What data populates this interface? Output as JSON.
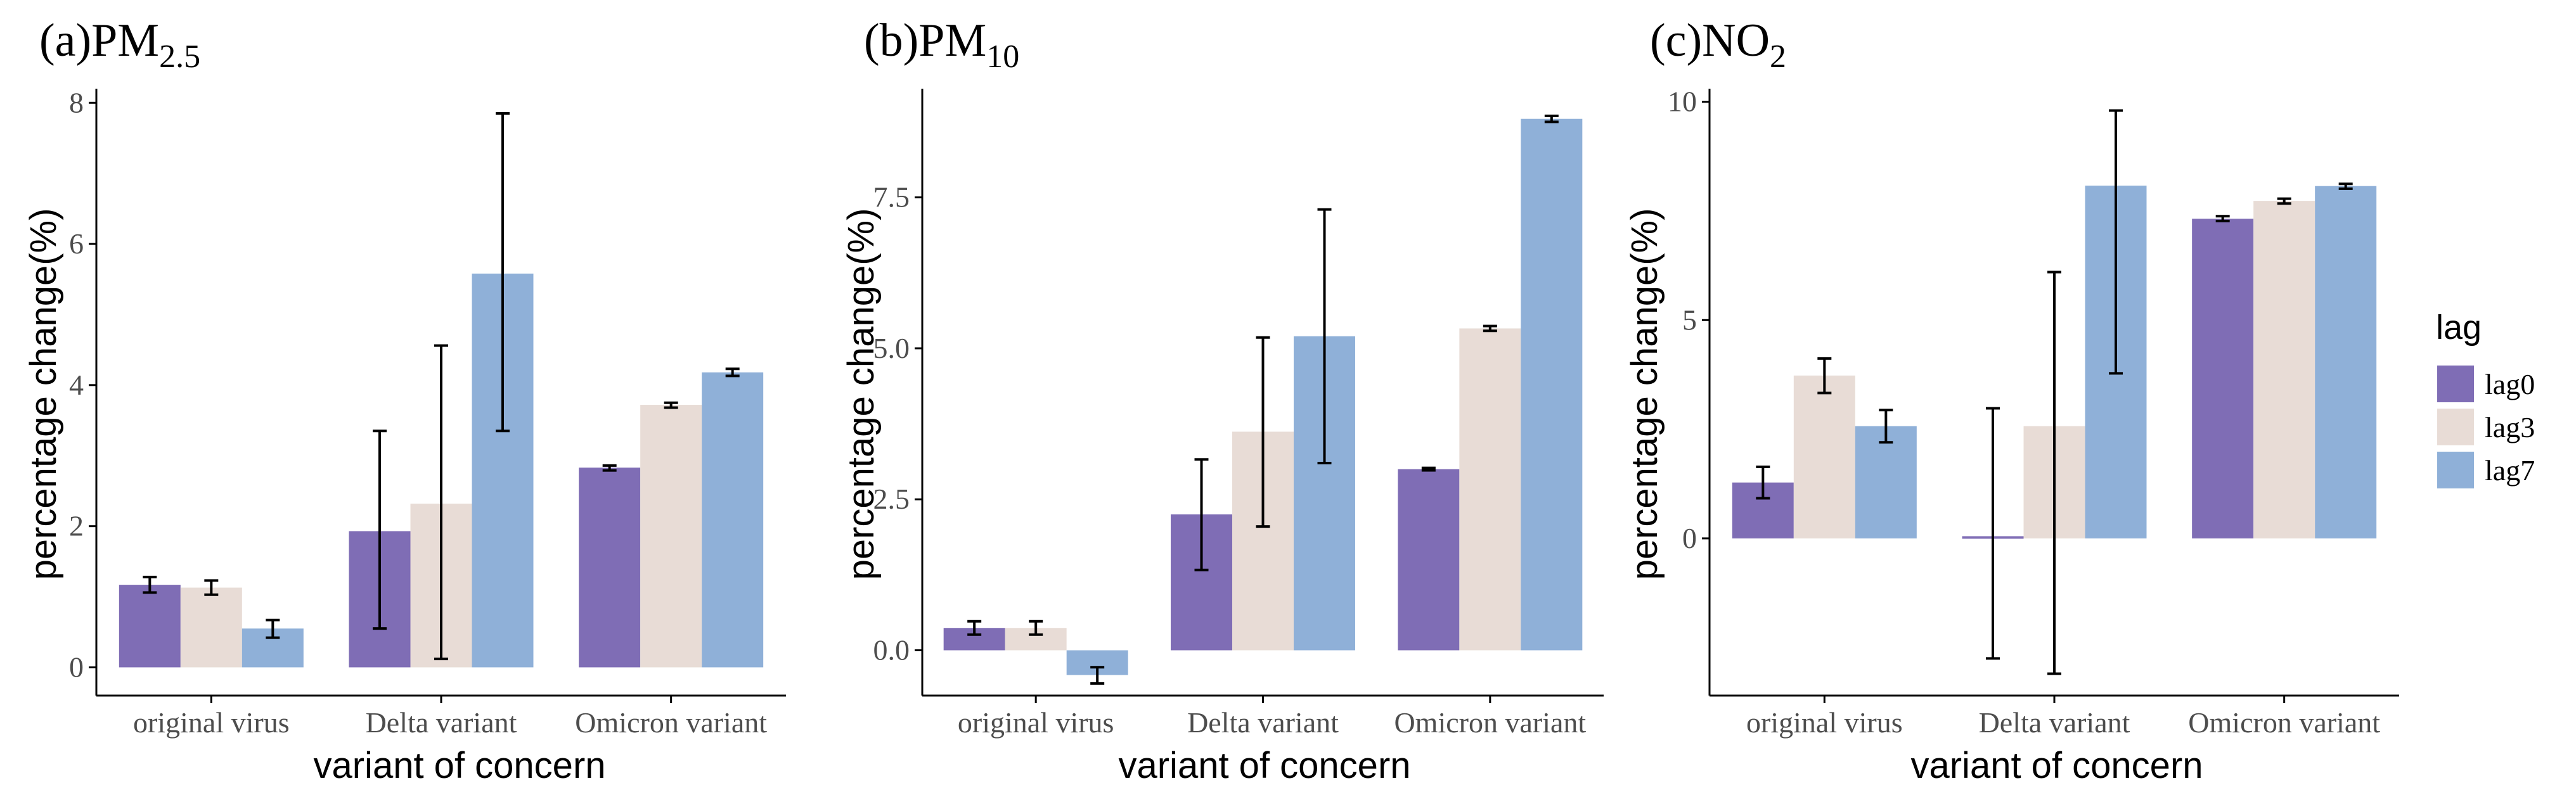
{
  "legend": {
    "title": "lag",
    "items": [
      {
        "label": "lag0",
        "color": "#7f6db5"
      },
      {
        "label": "lag3",
        "color": "#e8dcd6"
      },
      {
        "label": "lag7",
        "color": "#8fb0d8"
      }
    ]
  },
  "chart_data": [
    {
      "type": "bar",
      "title_main": "(a)PM",
      "title_sub": "2.5",
      "xlabel": "variant of concern",
      "ylabel": "percentage change(%)",
      "categories": [
        "original virus",
        "Delta variant",
        "Omicron variant"
      ],
      "ylim": [
        -0.4,
        8.2
      ],
      "yticks": [
        0,
        2,
        4,
        6,
        8
      ],
      "ytick_labels": [
        "0",
        "2",
        "4",
        "6",
        "8"
      ],
      "series": [
        {
          "name": "lag0",
          "values": [
            1.17,
            1.93,
            2.83
          ],
          "err_low": [
            1.06,
            0.55,
            2.79
          ],
          "err_high": [
            1.28,
            3.35,
            2.86
          ]
        },
        {
          "name": "lag3",
          "values": [
            1.13,
            2.32,
            3.72
          ],
          "err_low": [
            1.03,
            0.12,
            3.68
          ],
          "err_high": [
            1.23,
            4.56,
            3.75
          ]
        },
        {
          "name": "lag7",
          "values": [
            0.55,
            5.58,
            4.18
          ],
          "err_low": [
            0.42,
            3.35,
            4.13
          ],
          "err_high": [
            0.67,
            7.85,
            4.23
          ]
        }
      ]
    },
    {
      "type": "bar",
      "title_main": "(b)PM",
      "title_sub": "10",
      "xlabel": "variant of concern",
      "ylabel": "percentage change(%)",
      "categories": [
        "original virus",
        "Delta variant",
        "Omicron variant"
      ],
      "ylim": [
        -0.75,
        9.3
      ],
      "yticks": [
        0,
        2.5,
        5,
        7.5
      ],
      "ytick_labels": [
        "0.0",
        "2.5",
        "5.0",
        "7.5"
      ],
      "series": [
        {
          "name": "lag0",
          "values": [
            0.37,
            2.25,
            3.0
          ],
          "err_low": [
            0.26,
            1.33,
            2.98
          ],
          "err_high": [
            0.48,
            3.16,
            3.02
          ]
        },
        {
          "name": "lag3",
          "values": [
            0.37,
            3.62,
            5.33
          ],
          "err_low": [
            0.26,
            2.05,
            5.29
          ],
          "err_high": [
            0.48,
            5.18,
            5.37
          ]
        },
        {
          "name": "lag7",
          "values": [
            -0.41,
            5.2,
            8.8
          ],
          "err_low": [
            -0.55,
            3.1,
            8.75
          ],
          "err_high": [
            -0.28,
            7.3,
            8.85
          ]
        }
      ]
    },
    {
      "type": "bar",
      "title_main": "(c)NO",
      "title_sub": "2",
      "xlabel": "variant of concern",
      "ylabel": "percentage change(%)",
      "categories": [
        "original virus",
        "Delta variant",
        "Omicron variant"
      ],
      "ylim": [
        -3.6,
        10.3
      ],
      "yticks": [
        0,
        5,
        10
      ],
      "ytick_labels": [
        "0",
        "5",
        "10"
      ],
      "series": [
        {
          "name": "lag0",
          "values": [
            1.28,
            0.05,
            7.32
          ],
          "err_low": [
            0.92,
            -2.75,
            7.27
          ],
          "err_high": [
            1.64,
            2.98,
            7.38
          ]
        },
        {
          "name": "lag3",
          "values": [
            3.73,
            2.57,
            7.73
          ],
          "err_low": [
            3.33,
            -3.1,
            7.67
          ],
          "err_high": [
            4.12,
            6.1,
            7.78
          ]
        },
        {
          "name": "lag7",
          "values": [
            2.57,
            8.08,
            8.07
          ],
          "err_low": [
            2.2,
            3.78,
            8.01
          ],
          "err_high": [
            2.94,
            9.8,
            8.12
          ]
        }
      ]
    }
  ]
}
